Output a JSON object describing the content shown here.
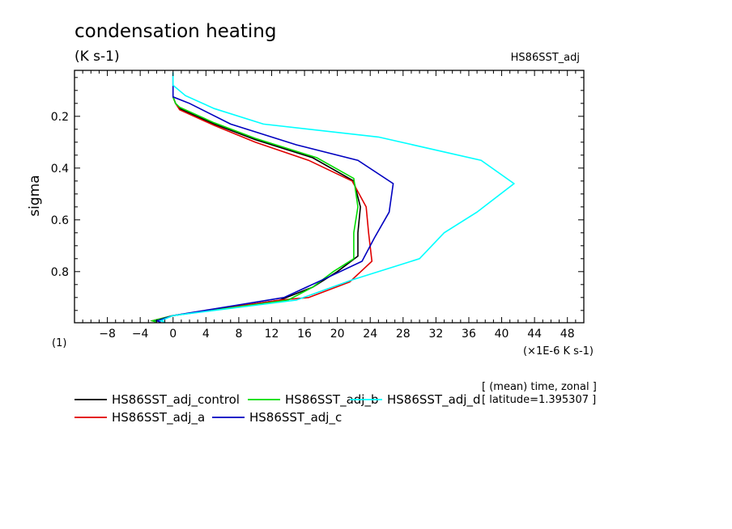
{
  "chart_data": {
    "type": "line",
    "title": "condensation heating",
    "units": "(K s-1)",
    "dataset_label": "HS86SST_adj",
    "ylabel": "sigma",
    "xlabel": "(×1E-6 K s-1)",
    "y_unit_note": "(1)",
    "xlim": [
      -12,
      50
    ],
    "ylim": [
      0.0225,
      0.9975
    ],
    "y_inverted": true,
    "x_ticks": [
      -8,
      -4,
      0,
      4,
      8,
      12,
      16,
      20,
      24,
      28,
      32,
      36,
      40,
      44,
      48
    ],
    "x_tick_labels": [
      "−8",
      "−4",
      "0",
      "4",
      "8",
      "12",
      "16",
      "20",
      "24",
      "28",
      "32",
      "36",
      "40",
      "44",
      "48"
    ],
    "y_ticks": [
      0.2,
      0.4,
      0.6,
      0.8
    ],
    "y_tick_labels": [
      "0.2",
      "0.4",
      "0.6",
      "0.8"
    ],
    "annotation": [
      "[ (mean) time, zonal ]",
      "[ latitude=1.395307 ]"
    ],
    "series": [
      {
        "name": "HS86SST_adj_control",
        "color": "#000000",
        "points": [
          [
            0.0,
            0.125
          ],
          [
            0.3,
            0.15
          ],
          [
            0.8,
            0.17
          ],
          [
            5,
            0.23
          ],
          [
            10,
            0.29
          ],
          [
            17,
            0.36
          ],
          [
            22,
            0.45
          ],
          [
            22.8,
            0.55
          ],
          [
            22.5,
            0.65
          ],
          [
            22.5,
            0.74
          ],
          [
            20,
            0.8
          ],
          [
            17,
            0.86
          ],
          [
            13,
            0.91
          ],
          [
            0,
            0.97
          ],
          [
            -2.5,
            0.99
          ],
          [
            -2,
            0.995
          ]
        ]
      },
      {
        "name": "HS86SST_adj_a",
        "color": "#e00000",
        "points": [
          [
            0.0,
            0.125
          ],
          [
            0.3,
            0.15
          ],
          [
            0.8,
            0.175
          ],
          [
            5,
            0.235
          ],
          [
            10,
            0.3
          ],
          [
            16.5,
            0.37
          ],
          [
            21.8,
            0.45
          ],
          [
            23.5,
            0.55
          ],
          [
            23.8,
            0.65
          ],
          [
            24.2,
            0.76
          ],
          [
            21.5,
            0.84
          ],
          [
            16.5,
            0.9
          ],
          [
            13,
            0.91
          ],
          [
            0,
            0.97
          ],
          [
            -2.5,
            0.99
          ],
          [
            -2,
            0.995
          ]
        ]
      },
      {
        "name": "HS86SST_adj_b",
        "color": "#00dd00",
        "points": [
          [
            0.0,
            0.125
          ],
          [
            0.3,
            0.15
          ],
          [
            0.8,
            0.165
          ],
          [
            5,
            0.225
          ],
          [
            10,
            0.285
          ],
          [
            17.5,
            0.36
          ],
          [
            22,
            0.44
          ],
          [
            22.5,
            0.55
          ],
          [
            22,
            0.65
          ],
          [
            22,
            0.75
          ],
          [
            19.5,
            0.8
          ],
          [
            17,
            0.86
          ],
          [
            14,
            0.91
          ],
          [
            0,
            0.97
          ],
          [
            -2.5,
            0.99
          ],
          [
            -2,
            0.995
          ]
        ]
      },
      {
        "name": "HS86SST_adj_c",
        "color": "#0000c0",
        "points": [
          [
            0.0,
            0.03
          ],
          [
            0.0,
            0.09
          ],
          [
            0.0,
            0.125
          ],
          [
            2,
            0.15
          ],
          [
            7,
            0.23
          ],
          [
            15,
            0.31
          ],
          [
            22.5,
            0.37
          ],
          [
            26.8,
            0.46
          ],
          [
            26.3,
            0.57
          ],
          [
            24.5,
            0.67
          ],
          [
            23,
            0.76
          ],
          [
            19,
            0.82
          ],
          [
            13.5,
            0.9
          ],
          [
            0,
            0.97
          ],
          [
            -2,
            0.99
          ],
          [
            -1.5,
            0.995
          ]
        ]
      },
      {
        "name": "HS86SST_adj_d",
        "color": "#00ffff",
        "points": [
          [
            0.0,
            0.03
          ],
          [
            0.0,
            0.08
          ],
          [
            1.5,
            0.12
          ],
          [
            5,
            0.17
          ],
          [
            11,
            0.23
          ],
          [
            25,
            0.28
          ],
          [
            37.5,
            0.37
          ],
          [
            41.5,
            0.46
          ],
          [
            37,
            0.57
          ],
          [
            33,
            0.65
          ],
          [
            30,
            0.75
          ],
          [
            22,
            0.83
          ],
          [
            15,
            0.91
          ],
          [
            0,
            0.97
          ],
          [
            -1.5,
            0.99
          ],
          [
            -1,
            0.995
          ]
        ]
      }
    ]
  }
}
